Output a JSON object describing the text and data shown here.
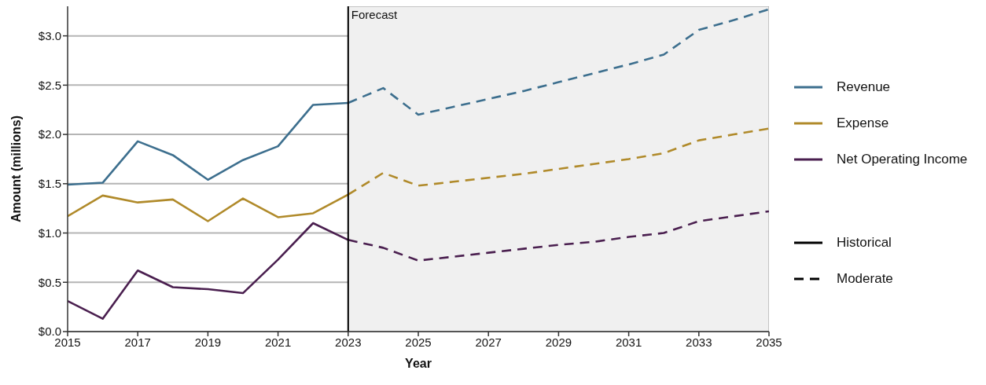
{
  "chart_data": {
    "type": "line",
    "xlabel": "Year",
    "ylabel": "Amount (millions)",
    "xlim": [
      2015,
      2035
    ],
    "xticks": [
      2015,
      2017,
      2019,
      2021,
      2023,
      2025,
      2027,
      2029,
      2031,
      2033,
      2035
    ],
    "ylim": [
      0,
      3.3
    ],
    "yticks": [
      {
        "value": 0,
        "label": "$0.0"
      },
      {
        "value": 0.5,
        "label": "$0.5"
      },
      {
        "value": 1,
        "label": "$1.0"
      },
      {
        "value": 1.5,
        "label": "$1.5"
      },
      {
        "value": 2,
        "label": "$2.0"
      },
      {
        "value": 2.5,
        "label": "$2.5"
      },
      {
        "value": 3,
        "label": "$3.0"
      }
    ],
    "grid": "y",
    "legend": "right",
    "marker": "none",
    "series": [
      {
        "name": "Revenue",
        "color": "#3d6f8e",
        "line_style": "solid",
        "x": [
          2015,
          2016,
          2017,
          2018,
          2019,
          2020,
          2021,
          2022,
          2023
        ],
        "values": [
          1.49,
          1.51,
          1.93,
          1.79,
          1.54,
          1.74,
          1.88,
          2.3,
          2.32
        ]
      },
      {
        "name": "Expense",
        "color": "#b08a2a",
        "line_style": "solid",
        "x": [
          2015,
          2016,
          2017,
          2018,
          2019,
          2020,
          2021,
          2022,
          2023
        ],
        "values": [
          1.17,
          1.38,
          1.31,
          1.34,
          1.12,
          1.35,
          1.16,
          1.2,
          1.39
        ]
      },
      {
        "name": "Net Operating Income",
        "color": "#4a1f4f",
        "line_style": "solid",
        "x": [
          2015,
          2016,
          2017,
          2018,
          2019,
          2020,
          2021,
          2022,
          2023
        ],
        "values": [
          0.31,
          0.13,
          0.62,
          0.45,
          0.43,
          0.39,
          0.73,
          1.1,
          0.93
        ]
      },
      {
        "color": "#3d6f8e",
        "line_style": "dashed",
        "x": [
          2023,
          2024,
          2025,
          2026,
          2027,
          2028,
          2029,
          2030,
          2031,
          2032,
          2033,
          2034,
          2035
        ],
        "values": [
          2.32,
          2.47,
          2.2,
          2.28,
          2.36,
          2.44,
          2.53,
          2.62,
          2.71,
          2.81,
          3.06,
          3.16,
          3.27
        ]
      },
      {
        "color": "#b08a2a",
        "line_style": "dashed",
        "x": [
          2023,
          2024,
          2025,
          2026,
          2027,
          2028,
          2029,
          2030,
          2031,
          2032,
          2033,
          2034,
          2035
        ],
        "values": [
          1.39,
          1.61,
          1.48,
          1.52,
          1.56,
          1.6,
          1.65,
          1.7,
          1.75,
          1.81,
          1.94,
          2.0,
          2.06
        ]
      },
      {
        "color": "#4a1f4f",
        "line_style": "dashed",
        "x": [
          2023,
          2024,
          2025,
          2026,
          2027,
          2028,
          2029,
          2030,
          2031,
          2032,
          2033,
          2034,
          2035
        ],
        "values": [
          0.93,
          0.85,
          0.72,
          0.76,
          0.8,
          0.84,
          0.88,
          0.91,
          0.96,
          1.0,
          1.12,
          1.17,
          1.22
        ]
      }
    ],
    "ref_lines": [
      {
        "axis": "x",
        "value": 2023,
        "label": "Forecast",
        "color": "#000000"
      }
    ],
    "bands": [
      {
        "axis": "x",
        "from": 2023,
        "to": 2035,
        "color": "#f0f0f0"
      }
    ],
    "annotations": [
      "Historical",
      "Moderate"
    ]
  }
}
